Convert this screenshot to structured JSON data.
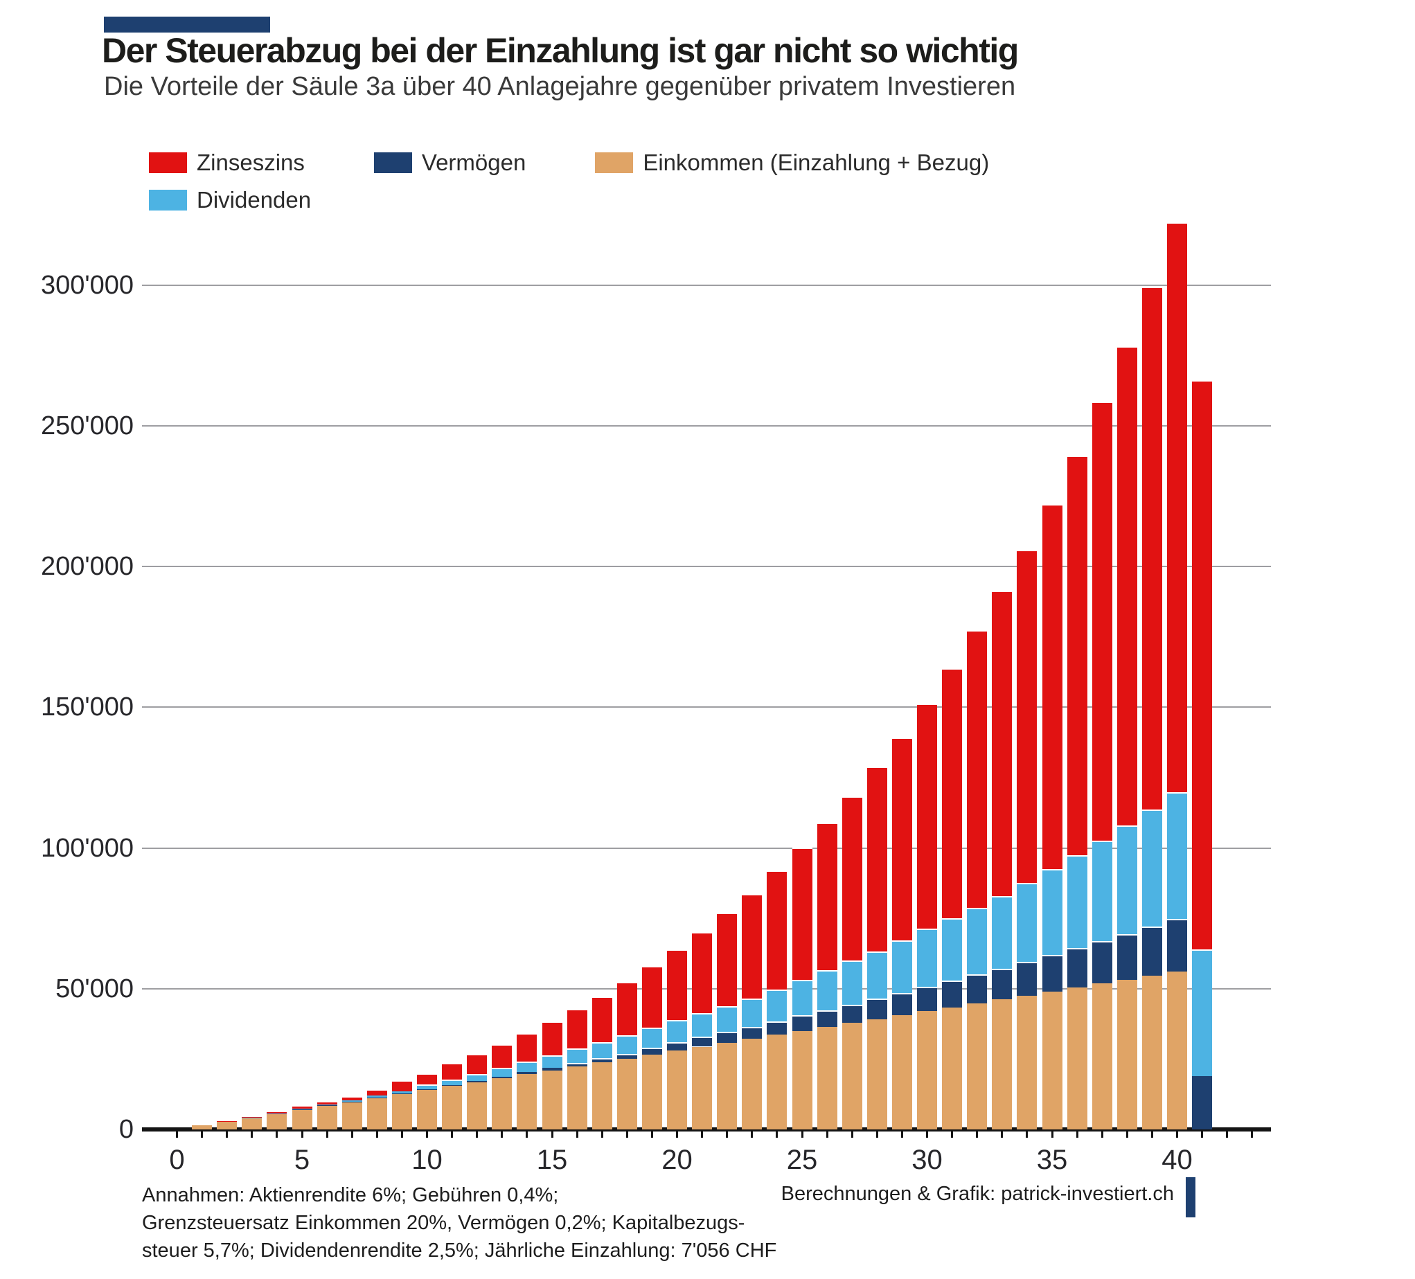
{
  "accent_color": "#1e4070",
  "chart_data": {
    "type": "bar",
    "stacked": true,
    "title": "Der Steuerabzug bei der Einzahlung ist gar nicht so wichtig",
    "subtitle": "Die Vorteile der Säule 3a über 40 Anlagejahre gegenüber privatem Investieren",
    "xlabel": "",
    "ylabel": "",
    "currency": "CHF",
    "years": [
      0,
      1,
      2,
      3,
      4,
      5,
      6,
      7,
      8,
      9,
      10,
      11,
      12,
      13,
      14,
      15,
      16,
      17,
      18,
      19,
      20,
      21,
      22,
      23,
      24,
      25,
      26,
      27,
      28,
      29,
      30,
      31,
      32,
      33,
      34,
      35,
      36,
      37,
      38,
      39,
      40,
      41
    ],
    "series": [
      {
        "key": "einkommen",
        "name": "Einkommen (Einzahlung + Bezug)",
        "color": "#e0a466",
        "values": [
          0,
          1400,
          2800,
          4200,
          5600,
          7000,
          8400,
          9800,
          11200,
          12600,
          14000,
          15400,
          16800,
          18200,
          19600,
          21000,
          22400,
          23800,
          25200,
          26600,
          28000,
          29400,
          30800,
          32200,
          33600,
          35000,
          36400,
          37800,
          39200,
          40600,
          42000,
          43400,
          44800,
          46200,
          47600,
          49000,
          50400,
          51800,
          53200,
          54600,
          56000,
          0
        ]
      },
      {
        "key": "vermoegen",
        "name": "Vermögen",
        "color": "#1e4070",
        "values": [
          0,
          0,
          0,
          0,
          0,
          100,
          100,
          100,
          200,
          200,
          300,
          300,
          400,
          600,
          800,
          900,
          1300,
          1500,
          1700,
          2400,
          3000,
          3500,
          3900,
          4300,
          4800,
          5500,
          5900,
          6500,
          7200,
          7900,
          8700,
          9600,
          10200,
          10800,
          12000,
          12900,
          14000,
          15000,
          16100,
          17500,
          18800,
          19000
        ]
      },
      {
        "key": "dividenden",
        "name": "Dividenden",
        "color": "#4db3e3",
        "values": [
          0,
          0,
          0,
          100,
          100,
          200,
          300,
          400,
          600,
          800,
          1600,
          2100,
          2600,
          3100,
          3700,
          4400,
          5100,
          5700,
          6500,
          7200,
          7900,
          8400,
          9200,
          10100,
          11300,
          12700,
          14200,
          15700,
          16900,
          18700,
          20600,
          22000,
          23700,
          26000,
          27900,
          30500,
          33100,
          35700,
          38800,
          41500,
          45100,
          45000
        ]
      },
      {
        "key": "zinseszins",
        "name": "Zinseszins",
        "color": "#e11212",
        "values": [
          0,
          0,
          100,
          200,
          400,
          700,
          1300,
          1600,
          2300,
          3800,
          4100,
          5700,
          7000,
          8400,
          10000,
          12100,
          14000,
          16300,
          19100,
          21900,
          25100,
          28700,
          33000,
          37000,
          42200,
          46900,
          52400,
          58300,
          65600,
          72100,
          80100,
          88800,
          98700,
          108400,
          118500,
          129800,
          141800,
          156000,
          170200,
          185900,
          202400,
          202200
        ]
      }
    ],
    "totals": [
      0,
      1400,
      2900,
      4500,
      6100,
      8000,
      10100,
      11900,
      14300,
      17400,
      20000,
      23500,
      26800,
      30300,
      34100,
      38400,
      42800,
      47300,
      52500,
      58100,
      64000,
      70000,
      76900,
      83600,
      91900,
      100100,
      108900,
      118300,
      128900,
      139300,
      151400,
      163800,
      177400,
      191400,
      206000,
      222200,
      239300,
      258500,
      278300,
      299500,
      322300,
      266200
    ],
    "legend_display_order": [
      3,
      1,
      0,
      2
    ],
    "xticks": [
      0,
      5,
      10,
      15,
      20,
      25,
      30,
      35,
      40
    ],
    "ylim": [
      0,
      325000
    ],
    "yticks": [
      {
        "value": 0,
        "label": "0"
      },
      {
        "value": 50000,
        "label": "50'000"
      },
      {
        "value": 100000,
        "label": "100'000"
      },
      {
        "value": 150000,
        "label": "150'000"
      },
      {
        "value": 200000,
        "label": "200'000"
      },
      {
        "value": 250000,
        "label": "250'000"
      },
      {
        "value": 300000,
        "label": "300'000"
      }
    ],
    "grid": "horizontal",
    "legend_position": "top-left"
  },
  "footer": {
    "assumptions_lines": [
      "Annahmen: Aktienrendite 6%; Gebühren 0,4%;",
      "Grenzsteuersatz Einkommen 20%, Vermögen 0,2%; Kapitalbezugs-",
      "steuer 5,7%; Dividendenrendite 2,5%; Jährliche Einzahlung: 7'056 CHF"
    ],
    "credit": "Berechnungen & Grafik: patrick-investiert.ch"
  }
}
